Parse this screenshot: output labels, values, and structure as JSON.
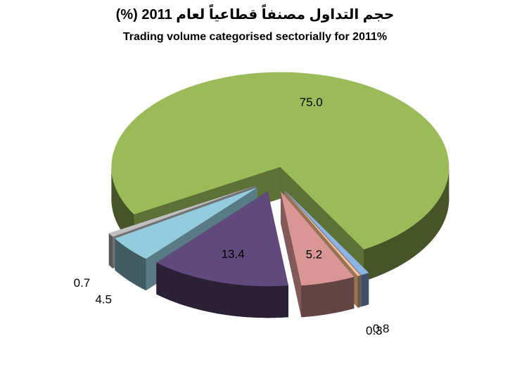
{
  "chart_data": {
    "type": "pie",
    "title": "حجم التداول مصنفاً قطاعياً لعام 2011 (%)",
    "subtitle": "Trading volume categorised sectorially for 2011%",
    "values": [
      75.0,
      0.8,
      0.3,
      5.2,
      13.4,
      4.5,
      0.7
    ],
    "value_labels": [
      "75.0",
      "0.8",
      "0.3",
      "5.2",
      "13.4",
      "4.5",
      "0.7"
    ],
    "colors": [
      "#9bbb59",
      "#8db3e2",
      "#fac090",
      "#d99694",
      "#604a7b",
      "#93cddd",
      "#bfbfbf"
    ]
  }
}
